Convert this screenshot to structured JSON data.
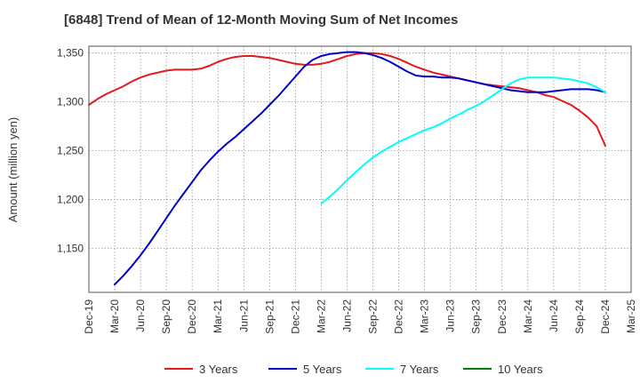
{
  "chart_data": {
    "type": "line",
    "title": "[6848]  Trend of Mean of 12-Month Moving Sum of Net Incomes",
    "xlabel": "",
    "ylabel": "Amount (million yen)",
    "x_tick_labels": [
      "Dec-19",
      "Mar-20",
      "Jun-20",
      "Sep-20",
      "Dec-20",
      "Mar-21",
      "Jun-21",
      "Sep-21",
      "Dec-21",
      "Mar-22",
      "Jun-22",
      "Sep-22",
      "Dec-22",
      "Mar-23",
      "Jun-23",
      "Sep-23",
      "Dec-23",
      "Mar-24",
      "Jun-24",
      "Sep-24",
      "Dec-24",
      "Mar-25"
    ],
    "y_ticks": [
      1150,
      1200,
      1250,
      1300,
      1350
    ],
    "y_tick_labels": [
      "1,150",
      "1,200",
      "1,250",
      "1,300",
      "1,350"
    ],
    "ylim": [
      1105,
      1357
    ],
    "grid": true,
    "legend_position": "bottom",
    "series": [
      {
        "name": "3 Years",
        "color": "#e31a1c",
        "x": [
          "Dec-19",
          "Jan-20",
          "Feb-20",
          "Mar-20",
          "Apr-20",
          "May-20",
          "Jun-20",
          "Jul-20",
          "Aug-20",
          "Sep-20",
          "Oct-20",
          "Nov-20",
          "Dec-20",
          "Jan-21",
          "Feb-21",
          "Mar-21",
          "Apr-21",
          "May-21",
          "Jun-21",
          "Jul-21",
          "Aug-21",
          "Sep-21",
          "Oct-21",
          "Nov-21",
          "Dec-21",
          "Jan-22",
          "Feb-22",
          "Mar-22",
          "Apr-22",
          "May-22",
          "Jun-22",
          "Jul-22",
          "Aug-22",
          "Sep-22",
          "Oct-22",
          "Nov-22",
          "Dec-22",
          "Jan-23",
          "Feb-23",
          "Mar-23",
          "Apr-23",
          "May-23",
          "Jun-23",
          "Jul-23",
          "Aug-23",
          "Sep-23",
          "Oct-23",
          "Nov-23",
          "Dec-23",
          "Jan-24",
          "Feb-24",
          "Mar-24",
          "Apr-24",
          "May-24",
          "Jun-24",
          "Jul-24",
          "Aug-24",
          "Sep-24",
          "Oct-24",
          "Nov-24",
          "Dec-24"
        ],
        "values": [
          1297,
          1303,
          1308,
          1312,
          1316,
          1321,
          1325,
          1328,
          1330,
          1332,
          1333,
          1333,
          1333,
          1334,
          1337,
          1341,
          1344,
          1346,
          1347,
          1347,
          1346,
          1345,
          1343,
          1341,
          1339,
          1338,
          1338,
          1339,
          1341,
          1344,
          1347,
          1349,
          1350,
          1350,
          1349,
          1347,
          1344,
          1340,
          1336,
          1333,
          1330,
          1328,
          1326,
          1324,
          1322,
          1320,
          1318,
          1317,
          1316,
          1315,
          1314,
          1312,
          1310,
          1307,
          1305,
          1301,
          1297,
          1291,
          1284,
          1275,
          1255
        ]
      },
      {
        "name": "5 Years",
        "color": "#0000cc",
        "x": [
          "Mar-20",
          "Apr-20",
          "May-20",
          "Jun-20",
          "Jul-20",
          "Aug-20",
          "Sep-20",
          "Oct-20",
          "Nov-20",
          "Dec-20",
          "Jan-21",
          "Feb-21",
          "Mar-21",
          "Apr-21",
          "May-21",
          "Jun-21",
          "Jul-21",
          "Aug-21",
          "Sep-21",
          "Oct-21",
          "Nov-21",
          "Dec-21",
          "Jan-22",
          "Feb-22",
          "Mar-22",
          "Apr-22",
          "May-22",
          "Jun-22",
          "Jul-22",
          "Aug-22",
          "Sep-22",
          "Oct-22",
          "Nov-22",
          "Dec-22",
          "Jan-23",
          "Feb-23",
          "Mar-23",
          "Apr-23",
          "May-23",
          "Jun-23",
          "Jul-23",
          "Aug-23",
          "Sep-23",
          "Oct-23",
          "Nov-23",
          "Dec-23",
          "Jan-24",
          "Feb-24",
          "Mar-24",
          "Apr-24",
          "May-24",
          "Jun-24",
          "Jul-24",
          "Aug-24",
          "Sep-24",
          "Oct-24",
          "Nov-24",
          "Dec-24"
        ],
        "values": [
          1113,
          1122,
          1132,
          1143,
          1155,
          1168,
          1181,
          1194,
          1206,
          1218,
          1230,
          1240,
          1249,
          1257,
          1264,
          1272,
          1280,
          1288,
          1297,
          1306,
          1316,
          1326,
          1336,
          1343,
          1347,
          1349,
          1350,
          1351,
          1351,
          1350,
          1348,
          1345,
          1341,
          1336,
          1331,
          1327,
          1326,
          1326,
          1325,
          1325,
          1324,
          1322,
          1320,
          1318,
          1316,
          1314,
          1312,
          1311,
          1310,
          1310,
          1310,
          1311,
          1312,
          1313,
          1313,
          1313,
          1312,
          1310
        ]
      },
      {
        "name": "7 Years",
        "color": "#00ffff",
        "x": [
          "Mar-22",
          "Apr-22",
          "May-22",
          "Jun-22",
          "Jul-22",
          "Aug-22",
          "Sep-22",
          "Oct-22",
          "Nov-22",
          "Dec-22",
          "Jan-23",
          "Feb-23",
          "Mar-23",
          "Apr-23",
          "May-23",
          "Jun-23",
          "Jul-23",
          "Aug-23",
          "Sep-23",
          "Oct-23",
          "Nov-23",
          "Dec-23",
          "Jan-24",
          "Feb-24",
          "Mar-24",
          "Apr-24",
          "May-24",
          "Jun-24",
          "Jul-24",
          "Aug-24",
          "Sep-24",
          "Oct-24",
          "Nov-24",
          "Dec-24"
        ],
        "values": [
          1196,
          1203,
          1211,
          1220,
          1228,
          1236,
          1243,
          1249,
          1254,
          1259,
          1263,
          1267,
          1271,
          1274,
          1278,
          1283,
          1287,
          1292,
          1296,
          1301,
          1307,
          1313,
          1319,
          1323,
          1325,
          1325,
          1325,
          1325,
          1324,
          1323,
          1321,
          1319,
          1315,
          1310
        ]
      },
      {
        "name": "10 Years",
        "color": "#008000",
        "x": [],
        "values": []
      }
    ]
  }
}
